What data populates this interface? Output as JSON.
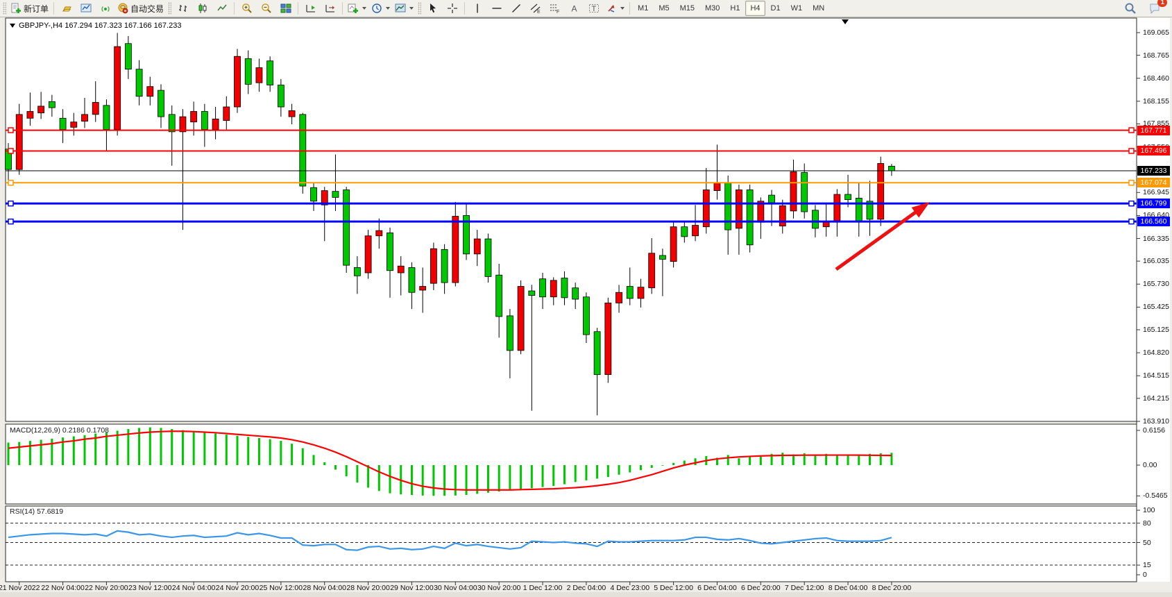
{
  "toolbar": {
    "new_order_label": "新订单",
    "auto_trade_label": "自动交易",
    "timeframes": [
      "M1",
      "M5",
      "M15",
      "M30",
      "H1",
      "H4",
      "D1",
      "W1",
      "MN"
    ],
    "active_timeframe": "H4",
    "chat_badge": "1"
  },
  "chart": {
    "title": "GBPJPY-,H4  167.294 167.323 167.166 167.233",
    "macd_label": "MACD(12,26,9) 0.2186 0.1708",
    "rsi_label": "RSI(14) 57.6819"
  },
  "chart_data": {
    "type": "candlestick",
    "symbol": "GBPJPY-",
    "timeframe": "H4",
    "current_ohlc": {
      "open": 167.294,
      "high": 167.323,
      "low": 167.166,
      "close": 167.233
    },
    "bull_color": "#F00000",
    "bear_color": "#00C800",
    "candles": [
      [
        167.52,
        167.6,
        167.1,
        167.25
      ],
      [
        167.25,
        168.12,
        167.18,
        167.98
      ],
      [
        167.93,
        168.27,
        167.83,
        168.02
      ],
      [
        168.0,
        168.28,
        167.92,
        168.09
      ],
      [
        168.15,
        168.24,
        167.95,
        168.07
      ],
      [
        167.93,
        168.05,
        167.6,
        167.78
      ],
      [
        167.81,
        168.0,
        167.7,
        167.88
      ],
      [
        167.89,
        168.2,
        167.8,
        167.98
      ],
      [
        167.98,
        168.42,
        167.88,
        168.14
      ],
      [
        168.1,
        168.18,
        167.5,
        167.78
      ],
      [
        167.78,
        169.06,
        167.7,
        168.88
      ],
      [
        168.92,
        169.02,
        168.45,
        168.58
      ],
      [
        168.58,
        168.7,
        168.1,
        168.22
      ],
      [
        168.22,
        168.48,
        168.1,
        168.35
      ],
      [
        168.3,
        168.38,
        167.8,
        167.95
      ],
      [
        167.98,
        168.1,
        167.3,
        167.75
      ],
      [
        167.75,
        168.05,
        166.45,
        167.95
      ],
      [
        167.88,
        168.15,
        167.7,
        168.02
      ],
      [
        168.02,
        168.12,
        167.55,
        167.78
      ],
      [
        167.78,
        168.08,
        167.65,
        167.92
      ],
      [
        167.9,
        168.22,
        167.78,
        168.08
      ],
      [
        168.08,
        168.85,
        168.0,
        168.75
      ],
      [
        168.72,
        168.83,
        168.25,
        168.38
      ],
      [
        168.4,
        168.72,
        168.28,
        168.6
      ],
      [
        168.69,
        168.75,
        168.28,
        168.37
      ],
      [
        168.37,
        168.45,
        167.95,
        168.08
      ],
      [
        167.95,
        168.12,
        167.85,
        168.03
      ],
      [
        167.98,
        168.0,
        166.93,
        167.03
      ],
      [
        167.01,
        167.08,
        166.7,
        166.83
      ],
      [
        166.78,
        167.02,
        166.3,
        166.97
      ],
      [
        166.96,
        167.45,
        166.7,
        166.88
      ],
      [
        166.98,
        167.02,
        165.88,
        165.98
      ],
      [
        165.95,
        166.1,
        165.6,
        165.84
      ],
      [
        165.88,
        166.45,
        165.8,
        166.37
      ],
      [
        166.37,
        166.6,
        166.2,
        166.44
      ],
      [
        166.41,
        166.48,
        165.55,
        165.91
      ],
      [
        165.88,
        166.1,
        165.58,
        165.97
      ],
      [
        165.95,
        166.02,
        165.4,
        165.62
      ],
      [
        165.65,
        165.95,
        165.35,
        165.7
      ],
      [
        165.74,
        166.28,
        165.65,
        166.2
      ],
      [
        166.19,
        166.26,
        165.6,
        165.75
      ],
      [
        165.75,
        166.82,
        165.7,
        166.63
      ],
      [
        166.64,
        166.8,
        166.05,
        166.13
      ],
      [
        166.13,
        166.45,
        165.97,
        166.33
      ],
      [
        166.33,
        166.4,
        165.75,
        165.83
      ],
      [
        165.85,
        166.0,
        165.02,
        165.3
      ],
      [
        165.31,
        165.4,
        164.48,
        164.85
      ],
      [
        164.85,
        165.78,
        164.8,
        165.7
      ],
      [
        165.64,
        165.72,
        164.05,
        165.58
      ],
      [
        165.8,
        165.88,
        165.4,
        165.56
      ],
      [
        165.56,
        165.82,
        165.45,
        165.78
      ],
      [
        165.81,
        165.9,
        165.45,
        165.55
      ],
      [
        165.68,
        165.75,
        165.4,
        165.53
      ],
      [
        165.56,
        165.62,
        164.95,
        165.06
      ],
      [
        165.1,
        165.15,
        163.99,
        164.53
      ],
      [
        164.53,
        165.55,
        164.42,
        165.48
      ],
      [
        165.48,
        165.72,
        165.35,
        165.62
      ],
      [
        165.7,
        165.95,
        165.45,
        165.54
      ],
      [
        165.54,
        165.8,
        165.42,
        165.69
      ],
      [
        165.68,
        166.34,
        165.6,
        166.14
      ],
      [
        166.11,
        166.2,
        165.57,
        166.06
      ],
      [
        166.03,
        166.57,
        165.95,
        166.49
      ],
      [
        166.49,
        166.55,
        166.28,
        166.36
      ],
      [
        166.37,
        166.78,
        166.3,
        166.51
      ],
      [
        166.49,
        167.27,
        166.4,
        166.98
      ],
      [
        166.97,
        167.58,
        166.85,
        167.07
      ],
      [
        167.07,
        167.17,
        166.12,
        166.45
      ],
      [
        166.47,
        167.05,
        166.12,
        166.98
      ],
      [
        166.98,
        167.05,
        166.15,
        166.25
      ],
      [
        166.55,
        166.88,
        166.33,
        166.83
      ],
      [
        166.91,
        166.98,
        166.5,
        166.81
      ],
      [
        166.5,
        166.85,
        166.4,
        166.77
      ],
      [
        166.7,
        167.38,
        166.6,
        167.22
      ],
      [
        167.21,
        167.33,
        166.6,
        166.69
      ],
      [
        166.71,
        166.78,
        166.35,
        166.47
      ],
      [
        166.49,
        166.81,
        166.36,
        166.55
      ],
      [
        166.57,
        166.99,
        166.36,
        166.92
      ],
      [
        166.92,
        167.18,
        166.75,
        166.85
      ],
      [
        166.87,
        167.08,
        166.36,
        166.57
      ],
      [
        166.83,
        167.1,
        166.37,
        166.59
      ],
      [
        166.59,
        167.42,
        166.5,
        167.33
      ],
      [
        167.294,
        167.323,
        167.166,
        167.233
      ]
    ],
    "time_labels": [
      "21 Nov 2022",
      "22 Nov 04:00",
      "22 Nov 20:00",
      "23 Nov 12:00",
      "24 Nov 04:00",
      "24 Nov 20:00",
      "25 Nov 12:00",
      "28 Nov 04:00",
      "28 Nov 20:00",
      "29 Nov 12:00",
      "30 Nov 04:00",
      "30 Nov 20:00",
      "1 Dec 12:00",
      "2 Dec 04:00",
      "4 Dec 23:00",
      "5 Dec 12:00",
      "6 Dec 04:00",
      "6 Dec 20:00",
      "7 Dec 12:00",
      "8 Dec 04:00",
      "8 Dec 20:00"
    ],
    "label_start_index": 1,
    "label_step": 4,
    "price_ticks": [
      "169.065",
      "168.765",
      "168.460",
      "168.155",
      "167.855",
      "167.550",
      "166.945",
      "166.640",
      "166.335",
      "166.035",
      "165.730",
      "165.425",
      "165.125",
      "164.820",
      "164.515",
      "164.215",
      "163.910"
    ],
    "hlines": [
      {
        "price": 167.771,
        "label": "167.771",
        "color": "#FF0000",
        "width": 2,
        "handles": true
      },
      {
        "price": 167.496,
        "label": "167.496",
        "color": "#FF0000",
        "width": 2,
        "handles": true
      },
      {
        "price": 167.233,
        "label": "167.233",
        "color": "#000000",
        "width": 1,
        "handles": false
      },
      {
        "price": 167.074,
        "label": "167.074",
        "color": "#FF9900",
        "width": 2,
        "handles": true
      },
      {
        "price": 166.799,
        "label": "166.799",
        "color": "#0000FF",
        "width": 3,
        "handles": true
      },
      {
        "price": 166.56,
        "label": "166.560",
        "color": "#0000FF",
        "width": 3,
        "handles": true
      }
    ],
    "arrow": {
      "from": [
        1205,
        388
      ],
      "to": [
        1340,
        291
      ],
      "color": "#EE1111"
    },
    "macd": {
      "name": "MACD",
      "params": "12,26,9",
      "value": 0.2186,
      "signal_value": 0.1708,
      "hist_color": "#00C800",
      "signal_color": "#FF0000",
      "scale_ticks": [
        "0.6156",
        "0.00",
        "-0.5465"
      ],
      "histogram": [
        0.4,
        0.41,
        0.43,
        0.45,
        0.47,
        0.49,
        0.51,
        0.53,
        0.56,
        0.58,
        0.61,
        0.64,
        0.66,
        0.67,
        0.66,
        0.64,
        0.62,
        0.6,
        0.58,
        0.56,
        0.54,
        0.52,
        0.5,
        0.48,
        0.46,
        0.43,
        0.38,
        0.3,
        0.18,
        0.05,
        -0.08,
        -0.2,
        -0.31,
        -0.4,
        -0.46,
        -0.5,
        -0.52,
        -0.53,
        -0.54,
        -0.545,
        -0.545,
        -0.54,
        -0.53,
        -0.51,
        -0.49,
        -0.47,
        -0.45,
        -0.43,
        -0.41,
        -0.39,
        -0.37,
        -0.34,
        -0.3,
        -0.27,
        -0.24,
        -0.21,
        -0.17,
        -0.13,
        -0.09,
        -0.05,
        -0.01,
        0.04,
        0.08,
        0.12,
        0.16,
        0.13,
        0.18,
        0.12,
        0.15,
        0.17,
        0.2,
        0.22,
        0.19,
        0.21,
        0.18,
        0.2,
        0.17,
        0.19,
        0.18,
        0.2,
        0.21,
        0.2186
      ],
      "signal": [
        0.3,
        0.32,
        0.34,
        0.36,
        0.38,
        0.41,
        0.43,
        0.46,
        0.48,
        0.51,
        0.53,
        0.55,
        0.57,
        0.585,
        0.595,
        0.6,
        0.6,
        0.595,
        0.585,
        0.575,
        0.56,
        0.545,
        0.53,
        0.515,
        0.5,
        0.48,
        0.45,
        0.41,
        0.36,
        0.3,
        0.23,
        0.15,
        0.06,
        -0.03,
        -0.12,
        -0.2,
        -0.27,
        -0.33,
        -0.375,
        -0.405,
        -0.425,
        -0.435,
        -0.44,
        -0.44,
        -0.44,
        -0.44,
        -0.44,
        -0.435,
        -0.43,
        -0.425,
        -0.42,
        -0.41,
        -0.4,
        -0.385,
        -0.365,
        -0.34,
        -0.31,
        -0.27,
        -0.22,
        -0.17,
        -0.11,
        -0.05,
        0.0,
        0.04,
        0.08,
        0.11,
        0.13,
        0.145,
        0.155,
        0.163,
        0.168,
        0.172,
        0.174,
        0.176,
        0.177,
        0.178,
        0.178,
        0.178,
        0.177,
        0.175,
        0.172,
        0.1708
      ]
    },
    "rsi": {
      "name": "RSI",
      "params": "14",
      "value": 57.6819,
      "color": "#3B96E8",
      "scale_ticks": [
        "100",
        "80",
        "50",
        "15",
        "0"
      ],
      "levels": [
        80,
        50,
        15
      ],
      "values": [
        58,
        60,
        62,
        63,
        64,
        64,
        63,
        62,
        63,
        60,
        68,
        66,
        62,
        63,
        60,
        58,
        60,
        61,
        58,
        59,
        60,
        65,
        62,
        64,
        61,
        57,
        57,
        46,
        45,
        47,
        47,
        39,
        38,
        43,
        44,
        40,
        41,
        39,
        40,
        44,
        41,
        49,
        45,
        47,
        44,
        42,
        40,
        42,
        52,
        51,
        50,
        51,
        49,
        48,
        44,
        52,
        51,
        51,
        52,
        53,
        53,
        53,
        54,
        58,
        58,
        55,
        54,
        56,
        53,
        49,
        48,
        50,
        52,
        54,
        56,
        57,
        53,
        52,
        52,
        52,
        53,
        57.68
      ]
    }
  }
}
